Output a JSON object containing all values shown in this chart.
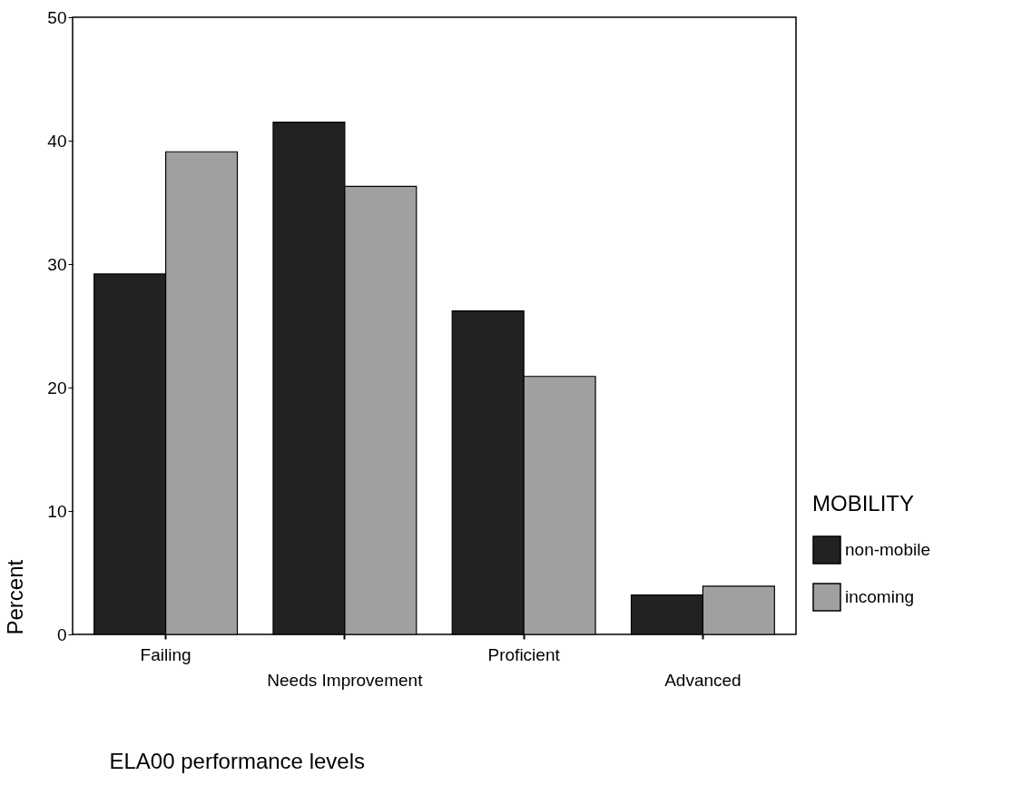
{
  "chart_data": {
    "type": "bar",
    "xlabel": "ELA00 performance levels",
    "ylabel": "Percent",
    "legend_title": "MOBILITY",
    "categories": [
      "Failing",
      "Needs Improvement",
      "Proficient",
      "Advanced"
    ],
    "series": [
      {
        "name": "non-mobile",
        "color": "#222222",
        "values": [
          29.2,
          41.5,
          26.2,
          3.2
        ]
      },
      {
        "name": "incoming",
        "color": "#a0a0a0",
        "values": [
          39.1,
          36.3,
          20.9,
          3.9
        ]
      }
    ],
    "ylim": [
      0,
      50
    ],
    "yticks": [
      0,
      10,
      20,
      30,
      40,
      50
    ],
    "grid": false,
    "legend": "right"
  }
}
